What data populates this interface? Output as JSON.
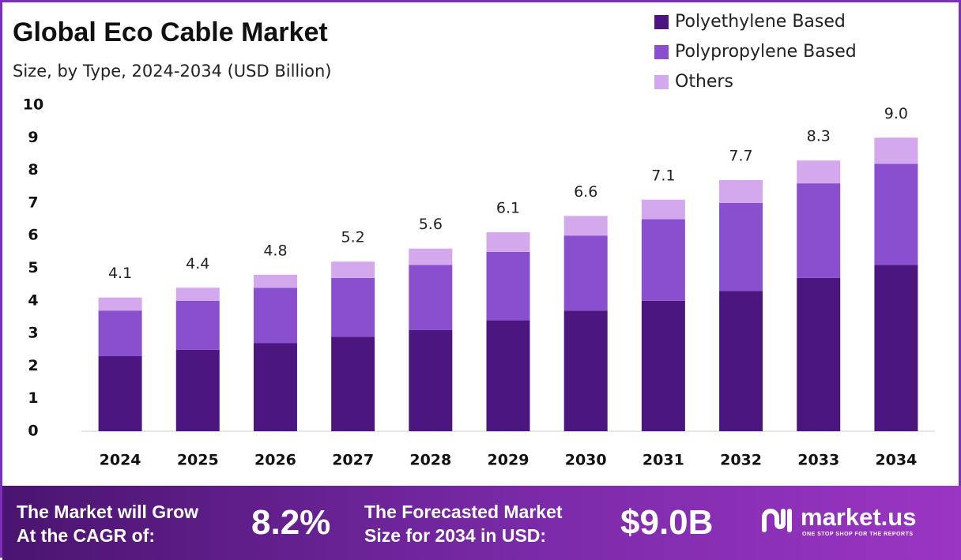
{
  "chart_data": {
    "type": "stacked_bar",
    "title": "Global Eco Cable Market",
    "subtitle": "Size, by Type, 2024-2034 (USD Billion)",
    "categories": [
      "2024",
      "2025",
      "2026",
      "2027",
      "2028",
      "2029",
      "2030",
      "2031",
      "2032",
      "2033",
      "2034"
    ],
    "series": [
      {
        "name": "Polyethylene Based",
        "color": "#4b1680",
        "values": [
          2.3,
          2.5,
          2.7,
          2.9,
          3.1,
          3.4,
          3.7,
          4.0,
          4.3,
          4.7,
          5.1
        ]
      },
      {
        "name": "Polypropylene Based",
        "color": "#8a4fcf",
        "values": [
          1.4,
          1.5,
          1.7,
          1.8,
          2.0,
          2.1,
          2.3,
          2.5,
          2.7,
          2.9,
          3.1
        ]
      },
      {
        "name": "Others",
        "color": "#d4a8ec",
        "values": [
          0.4,
          0.4,
          0.4,
          0.5,
          0.5,
          0.6,
          0.6,
          0.6,
          0.7,
          0.7,
          0.8
        ]
      }
    ],
    "totals": [
      4.1,
      4.4,
      4.8,
      5.2,
      5.6,
      6.1,
      6.6,
      7.1,
      7.7,
      8.3,
      9.0
    ],
    "total_labels": [
      "4.1",
      "4.4",
      "4.8",
      "5.2",
      "5.6",
      "6.1",
      "6.6",
      "7.1",
      "7.7",
      "8.3",
      "9.0"
    ],
    "ylim": [
      0,
      10
    ],
    "yticks": [
      0,
      1,
      2,
      3,
      4,
      5,
      6,
      7,
      8,
      9,
      10
    ],
    "grid": false,
    "legend": "top-right"
  },
  "footer": {
    "cagr_label": [
      "The Market will Grow",
      "At the CAGR of:"
    ],
    "cagr": "8.2%",
    "forecast_label": [
      "The Forecasted Market",
      "Size for 2034 in USD:"
    ],
    "forecast": "$9.0B",
    "brand": "market.us",
    "tagline": "ONE STOP SHOP FOR THE REPORTS"
  }
}
